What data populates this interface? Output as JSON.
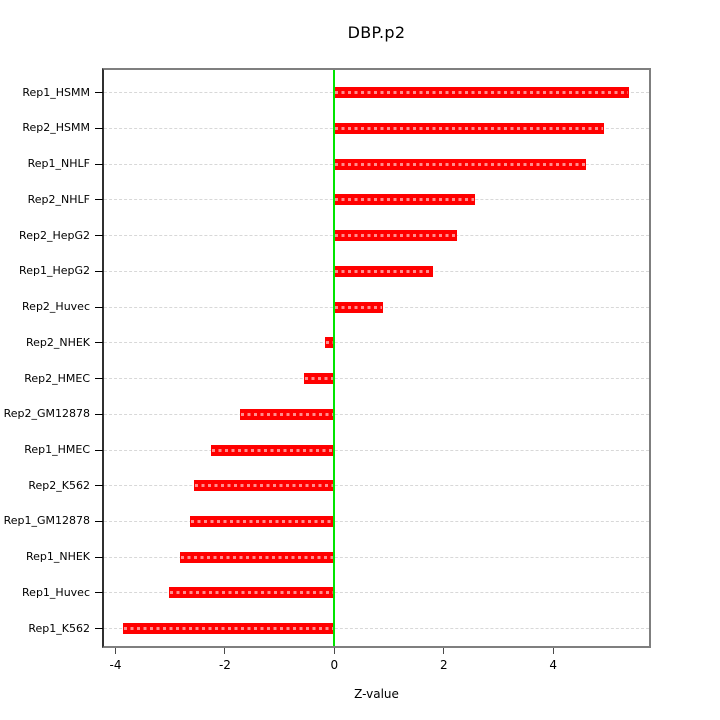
{
  "chart_data": {
    "type": "bar",
    "orientation": "horizontal",
    "title": "DBP.p2",
    "xlabel": "Z-value",
    "ylabel": "",
    "categories": [
      "Rep1_HSMM",
      "Rep2_HSMM",
      "Rep1_NHLF",
      "Rep2_NHLF",
      "Rep2_HepG2",
      "Rep1_HepG2",
      "Rep2_Huvec",
      "Rep2_NHEK",
      "Rep2_HMEC",
      "Rep2_GM12878",
      "Rep1_HMEC",
      "Rep2_K562",
      "Rep1_GM12878",
      "Rep1_NHEK",
      "Rep1_Huvec",
      "Rep1_K562"
    ],
    "values": [
      5.39,
      4.93,
      4.6,
      2.57,
      2.25,
      1.81,
      0.89,
      -0.17,
      -0.56,
      -1.73,
      -2.26,
      -2.56,
      -2.64,
      -2.83,
      -3.03,
      -3.87
    ],
    "xticks": [
      -4,
      -2,
      0,
      2,
      4
    ],
    "xlim": [
      -4.21,
      5.75
    ],
    "zero_line": 0,
    "grid": "per-category dashed guide lines, full plot width",
    "legend": "none",
    "colors": {
      "bar": "#ff0000",
      "bar_dash_overlay": "#ff9999",
      "zero_line": "#00e500",
      "guide_line": "#d8d8d8",
      "box_border": "#7f7f7f",
      "axis_text": "#000000",
      "background": "#ffffff"
    }
  }
}
